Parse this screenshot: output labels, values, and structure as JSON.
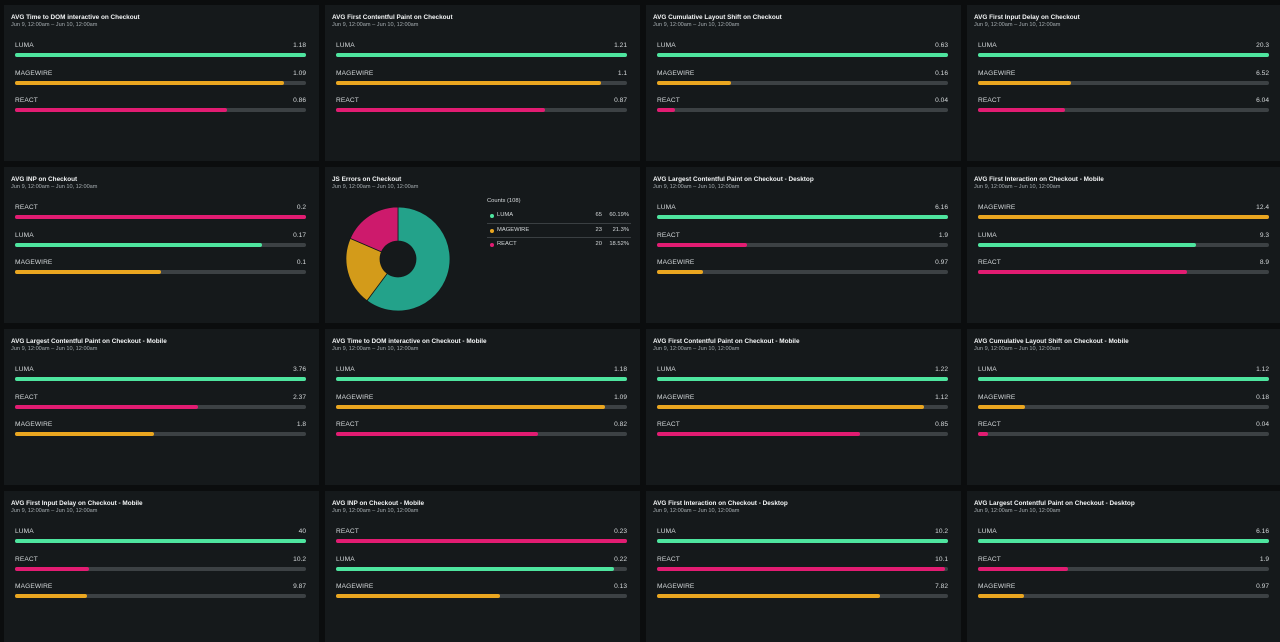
{
  "colors": {
    "LUMA": "#4ee59f",
    "MAGEWIRE": "#eaa620",
    "REACT": "#e21c72",
    "donut_luma": "#23a28a",
    "donut_magewire": "#d39b1a",
    "donut_react": "#cd1a6c"
  },
  "date_range": "Jun 9, 12:00am – Jun 10, 12:00am",
  "panels": [
    {
      "title": "AVG Time to DOM interactive on Checkout",
      "bars": [
        {
          "label": "LUMA",
          "value": 1.18
        },
        {
          "label": "MAGEWIRE",
          "value": 1.09
        },
        {
          "label": "REACT",
          "value": 0.86
        }
      ]
    },
    {
      "title": "AVG First Contentful Paint on Checkout",
      "bars": [
        {
          "label": "LUMA",
          "value": 1.21
        },
        {
          "label": "MAGEWIRE",
          "value": 1.1
        },
        {
          "label": "REACT",
          "value": 0.87
        }
      ]
    },
    {
      "title": "AVG Cumulative Layout Shift on Checkout",
      "bars": [
        {
          "label": "LUMA",
          "value": 0.63
        },
        {
          "label": "MAGEWIRE",
          "value": 0.16
        },
        {
          "label": "REACT",
          "value": 0.04
        }
      ]
    },
    {
      "title": "AVG First Input Delay on Checkout",
      "bars": [
        {
          "label": "LUMA",
          "value": 20.3
        },
        {
          "label": "MAGEWIRE",
          "value": 6.52
        },
        {
          "label": "REACT",
          "value": 6.04
        }
      ]
    },
    {
      "title": "AVG INP on Checkout",
      "bars": [
        {
          "label": "REACT",
          "value": 0.2
        },
        {
          "label": "LUMA",
          "value": 0.17
        },
        {
          "label": "MAGEWIRE",
          "value": 0.1
        }
      ]
    },
    {
      "title": "JS Errors on Checkout",
      "type": "pie"
    },
    {
      "title": "AVG Largest Contentful Paint on Checkout - Desktop",
      "bars": [
        {
          "label": "LUMA",
          "value": 6.16
        },
        {
          "label": "REACT",
          "value": 1.9
        },
        {
          "label": "MAGEWIRE",
          "value": 0.97
        }
      ]
    },
    {
      "title": "AVG First Interaction on Checkout - Mobile",
      "bars": [
        {
          "label": "MAGEWIRE",
          "value": 12.4
        },
        {
          "label": "LUMA",
          "value": 9.3
        },
        {
          "label": "REACT",
          "value": 8.9
        }
      ]
    },
    {
      "title": "AVG Largest Contentful Paint on Checkout - Mobile",
      "bars": [
        {
          "label": "LUMA",
          "value": 3.76
        },
        {
          "label": "REACT",
          "value": 2.37
        },
        {
          "label": "MAGEWIRE",
          "value": 1.8
        }
      ]
    },
    {
      "title": "AVG Time to DOM interactive on Checkout - Mobile",
      "bars": [
        {
          "label": "LUMA",
          "value": 1.18
        },
        {
          "label": "MAGEWIRE",
          "value": 1.09
        },
        {
          "label": "REACT",
          "value": 0.82
        }
      ]
    },
    {
      "title": "AVG First Contentful Paint on Checkout - Mobile",
      "bars": [
        {
          "label": "LUMA",
          "value": 1.22
        },
        {
          "label": "MAGEWIRE",
          "value": 1.12
        },
        {
          "label": "REACT",
          "value": 0.85
        }
      ]
    },
    {
      "title": "AVG Cumulative Layout Shift on Checkout - Mobile",
      "bars": [
        {
          "label": "LUMA",
          "value": 1.12
        },
        {
          "label": "MAGEWIRE",
          "value": 0.18
        },
        {
          "label": "REACT",
          "value": 0.04
        }
      ]
    },
    {
      "title": "AVG First Input Delay on Checkout - Mobile",
      "bars": [
        {
          "label": "LUMA",
          "value": 40
        },
        {
          "label": "REACT",
          "value": 10.2
        },
        {
          "label": "MAGEWIRE",
          "value": 9.87
        }
      ]
    },
    {
      "title": "AVG INP on Checkout - Mobile",
      "bars": [
        {
          "label": "REACT",
          "value": 0.23
        },
        {
          "label": "LUMA",
          "value": 0.22
        },
        {
          "label": "MAGEWIRE",
          "value": 0.13
        }
      ]
    },
    {
      "title": "AVG First Interaction on Checkout - Desktop",
      "bars": [
        {
          "label": "LUMA",
          "value": 10.2
        },
        {
          "label": "REACT",
          "value": 10.1
        },
        {
          "label": "MAGEWIRE",
          "value": 7.82
        }
      ]
    },
    {
      "title": "AVG Largest Contentful Paint on Checkout - Desktop",
      "bars": [
        {
          "label": "LUMA",
          "value": 6.16
        },
        {
          "label": "REACT",
          "value": 1.9
        },
        {
          "label": "MAGEWIRE",
          "value": 0.97
        }
      ]
    }
  ],
  "chart_data": [
    {
      "type": "bar",
      "title": "AVG Time to DOM interactive on Checkout",
      "categories": [
        "LUMA",
        "MAGEWIRE",
        "REACT"
      ],
      "values": [
        1.18,
        1.09,
        0.86
      ]
    },
    {
      "type": "bar",
      "title": "AVG First Contentful Paint on Checkout",
      "categories": [
        "LUMA",
        "MAGEWIRE",
        "REACT"
      ],
      "values": [
        1.21,
        1.1,
        0.87
      ]
    },
    {
      "type": "bar",
      "title": "AVG Cumulative Layout Shift on Checkout",
      "categories": [
        "LUMA",
        "MAGEWIRE",
        "REACT"
      ],
      "values": [
        0.63,
        0.16,
        0.04
      ]
    },
    {
      "type": "bar",
      "title": "AVG First Input Delay on Checkout",
      "categories": [
        "LUMA",
        "MAGEWIRE",
        "REACT"
      ],
      "values": [
        20.3,
        6.52,
        6.04
      ]
    },
    {
      "type": "bar",
      "title": "AVG INP on Checkout",
      "categories": [
        "REACT",
        "LUMA",
        "MAGEWIRE"
      ],
      "values": [
        0.2,
        0.17,
        0.1
      ]
    },
    {
      "type": "pie",
      "title": "JS Errors on Checkout",
      "legend_title": "Counts (108)",
      "total": 108,
      "slices": [
        {
          "name": "LUMA",
          "value": 65,
          "percent": "60.19%"
        },
        {
          "name": "MAGEWIRE",
          "value": 23,
          "percent": "21.3%"
        },
        {
          "name": "REACT",
          "value": 20,
          "percent": "18.52%"
        }
      ]
    },
    {
      "type": "bar",
      "title": "AVG Largest Contentful Paint on Checkout - Desktop",
      "categories": [
        "LUMA",
        "REACT",
        "MAGEWIRE"
      ],
      "values": [
        6.16,
        1.9,
        0.97
      ]
    },
    {
      "type": "bar",
      "title": "AVG First Interaction on Checkout - Mobile",
      "categories": [
        "MAGEWIRE",
        "LUMA",
        "REACT"
      ],
      "values": [
        12.4,
        9.3,
        8.9
      ]
    },
    {
      "type": "bar",
      "title": "AVG Largest Contentful Paint on Checkout - Mobile",
      "categories": [
        "LUMA",
        "REACT",
        "MAGEWIRE"
      ],
      "values": [
        3.76,
        2.37,
        1.8
      ]
    },
    {
      "type": "bar",
      "title": "AVG Time to DOM interactive on Checkout - Mobile",
      "categories": [
        "LUMA",
        "MAGEWIRE",
        "REACT"
      ],
      "values": [
        1.18,
        1.09,
        0.82
      ]
    },
    {
      "type": "bar",
      "title": "AVG First Contentful Paint on Checkout - Mobile",
      "categories": [
        "LUMA",
        "MAGEWIRE",
        "REACT"
      ],
      "values": [
        1.22,
        1.12,
        0.85
      ]
    },
    {
      "type": "bar",
      "title": "AVG Cumulative Layout Shift on Checkout - Mobile",
      "categories": [
        "LUMA",
        "MAGEWIRE",
        "REACT"
      ],
      "values": [
        1.12,
        0.18,
        0.04
      ]
    },
    {
      "type": "bar",
      "title": "AVG First Input Delay on Checkout - Mobile",
      "categories": [
        "LUMA",
        "REACT",
        "MAGEWIRE"
      ],
      "values": [
        40,
        10.2,
        9.87
      ]
    },
    {
      "type": "bar",
      "title": "AVG INP on Checkout - Mobile",
      "categories": [
        "REACT",
        "LUMA",
        "MAGEWIRE"
      ],
      "values": [
        0.23,
        0.22,
        0.13
      ]
    },
    {
      "type": "bar",
      "title": "AVG First Interaction on Checkout - Desktop",
      "categories": [
        "LUMA",
        "REACT",
        "MAGEWIRE"
      ],
      "values": [
        10.2,
        10.1,
        7.82
      ]
    },
    {
      "type": "bar",
      "title": "AVG Largest Contentful Paint on Checkout - Desktop",
      "categories": [
        "LUMA",
        "REACT",
        "MAGEWIRE"
      ],
      "values": [
        6.16,
        1.9,
        0.97
      ]
    }
  ]
}
